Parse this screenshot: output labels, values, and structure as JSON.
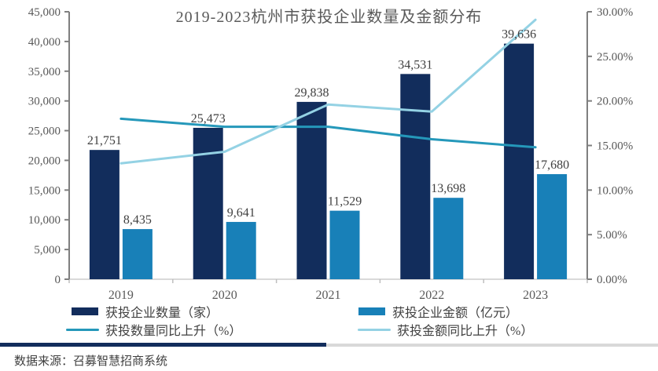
{
  "title": "2019-2023杭州市获投企业数量及金额分布",
  "footer": {
    "source": "数据来源：召募智慧招商系统"
  },
  "colors": {
    "navy": "#122d5c",
    "blue": "#1880b8",
    "teal": "#2598ba",
    "light_blue": "#94d2e4",
    "axis_line": "#7f7f7f",
    "baseline": "#d9d9d9",
    "tick": "#bfbfbf",
    "label": "#595959",
    "data_label": "#404040",
    "divider_left": "#122d5c",
    "divider_right": "#d9d9d9"
  },
  "legend": [
    {
      "label": "获投企业数量（家）",
      "swatch": "rect",
      "color": "#122d5c"
    },
    {
      "label": "获投企业金额（亿元）",
      "swatch": "rect",
      "color": "#1880b8"
    },
    {
      "label": "获投数量同比上升（%）",
      "swatch": "line",
      "color": "#2598ba"
    },
    {
      "label": "获投金额同比上升（%）",
      "swatch": "line",
      "color": "#94d2e4"
    }
  ],
  "chart_data": {
    "type": "combo-bar-line",
    "title": "2019-2023杭州市获投企业数量及金额分布",
    "categories": [
      "2019",
      "2020",
      "2021",
      "2022",
      "2023"
    ],
    "series": [
      {
        "name": "获投企业数量（家）",
        "type": "bar",
        "axis": "left",
        "color": "#122d5c",
        "values": [
          21751,
          25473,
          29838,
          34531,
          39636
        ],
        "labels": [
          "21,751",
          "25,473",
          "29,838",
          "34,531",
          "39,636"
        ]
      },
      {
        "name": "获投企业金额（亿元）",
        "type": "bar",
        "axis": "left",
        "color": "#1880b8",
        "values": [
          8435,
          9641,
          11529,
          13698,
          17680
        ],
        "labels": [
          "8,435",
          "9,641",
          "11,529",
          "13,698",
          "17,680"
        ]
      },
      {
        "name": "获投数量同比上升（%）",
        "type": "line",
        "axis": "right",
        "color": "#2598ba",
        "values": [
          18.0,
          17.1,
          17.1,
          15.7,
          14.8
        ]
      },
      {
        "name": "获投金额同比上升（%）",
        "type": "line",
        "axis": "right",
        "color": "#94d2e4",
        "values": [
          13.0,
          14.3,
          19.6,
          18.8,
          29.1
        ]
      }
    ],
    "left_axis": {
      "min": 0,
      "max": 45000,
      "step": 5000,
      "ticks": [
        "0",
        "5,000",
        "10,000",
        "15,000",
        "20,000",
        "25,000",
        "30,000",
        "35,000",
        "40,000",
        "45,000"
      ]
    },
    "right_axis": {
      "min": 0,
      "max": 30,
      "step": 5,
      "ticks": [
        "0.00%",
        "5.00%",
        "10.00%",
        "15.00%",
        "20.00%",
        "25.00%",
        "30.00%"
      ]
    },
    "grid": false,
    "legend_position": "bottom"
  }
}
